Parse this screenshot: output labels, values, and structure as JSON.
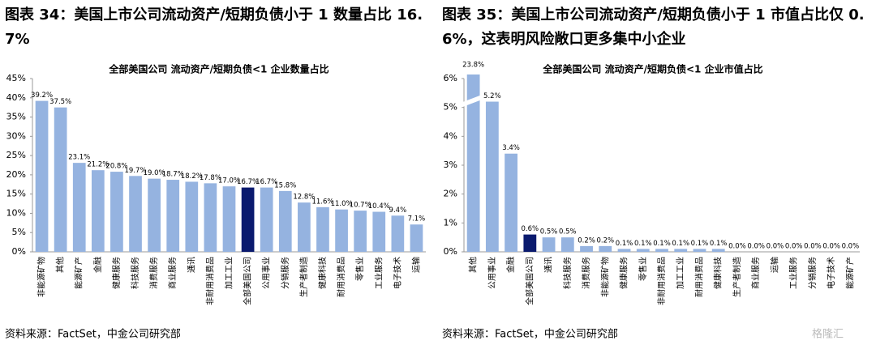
{
  "chart_data": [
    {
      "type": "bar",
      "heading": "图表 34：美国上市公司流动资产/短期负债小于 1 数量占比 16.7%",
      "title": "全部美国公司 流动资产/短期负债<1 企业数量占比",
      "categories": [
        "非能源矿物",
        "其他",
        "能源矿产",
        "金融",
        "健康服务",
        "科技服务",
        "消费服务",
        "商业服务",
        "通讯",
        "非耐用消费品",
        "加工工业",
        "全部美国公司",
        "公用事业",
        "分销服务",
        "生产者制造",
        "健康科技",
        "耐用消费品",
        "零售业",
        "工业服务",
        "电子技术",
        "运输"
      ],
      "values": [
        39.2,
        37.5,
        23.1,
        21.2,
        20.8,
        19.7,
        19.0,
        18.7,
        18.2,
        17.8,
        17.0,
        16.7,
        16.7,
        15.8,
        12.8,
        11.6,
        11.0,
        10.7,
        10.4,
        9.4,
        7.1
      ],
      "value_labels": [
        "39.2%",
        "37.5%",
        "23.1%",
        "21.2%",
        "20.8%",
        "19.7%",
        "19.0%",
        "18.7%",
        "18.2%",
        "17.8%",
        "17.0%",
        "16.7%",
        "16.7%",
        "15.8%",
        "12.8%",
        "11.6%",
        "11.0%",
        "10.7%",
        "10.4%",
        "9.4%",
        "7.1%"
      ],
      "colors": [
        "#95b3e0",
        "#95b3e0",
        "#95b3e0",
        "#95b3e0",
        "#95b3e0",
        "#95b3e0",
        "#95b3e0",
        "#95b3e0",
        "#95b3e0",
        "#95b3e0",
        "#95b3e0",
        "#0a1a6e",
        "#95b3e0",
        "#95b3e0",
        "#95b3e0",
        "#95b3e0",
        "#95b3e0",
        "#95b3e0",
        "#95b3e0",
        "#95b3e0",
        "#95b3e0"
      ],
      "ylim": [
        0,
        45
      ],
      "yticks": [
        {
          "value": 0,
          "label": "0%"
        },
        {
          "value": 5,
          "label": "5%"
        },
        {
          "value": 10,
          "label": "10%"
        },
        {
          "value": 15,
          "label": "15%"
        },
        {
          "value": 20,
          "label": "20%"
        },
        {
          "value": 25,
          "label": "25%"
        },
        {
          "value": 30,
          "label": "30%"
        },
        {
          "value": 35,
          "label": "35%"
        },
        {
          "value": 40,
          "label": "40%"
        },
        {
          "value": 45,
          "label": "45%"
        }
      ],
      "source": "资料来源：FactSet，中金公司研究部"
    },
    {
      "type": "bar",
      "heading": "图表 35：美国上市公司流动资产/短期负债小于 1 市值占比仅 0.6%，这表明风险敞口更多集中小企业",
      "title": "全部美国公司 流动资产/短期负债<1 企业市值占比",
      "categories": [
        "其他",
        "公用事业",
        "金融",
        "全部美国公司",
        "通讯",
        "科技服务",
        "消费服务",
        "非能源矿物",
        "健康服务",
        "零售业",
        "非耐用消费品",
        "加工工业",
        "耐用消费品",
        "健康科技",
        "生产者制造",
        "商业服务",
        "运输",
        "工业服务",
        "分销服务",
        "电子技术",
        "能源矿产"
      ],
      "values": [
        23.8,
        5.2,
        3.4,
        0.6,
        0.5,
        0.5,
        0.2,
        0.2,
        0.1,
        0.1,
        0.1,
        0.1,
        0.1,
        0.1,
        0.0,
        0.0,
        0.0,
        0.0,
        0.0,
        0.0,
        0.0
      ],
      "value_labels": [
        "23.8%",
        "5.2%",
        "3.4%",
        "0.6%",
        "0.5%",
        "0.5%",
        "0.2%",
        "0.2%",
        "0.1%",
        "0.1%",
        "0.1%",
        "0.1%",
        "0.1%",
        "0.1%",
        "0.0%",
        "0.0%",
        "0.0%",
        "0.0%",
        "0.0%",
        "0.0%",
        "0.0%"
      ],
      "colors": [
        "#95b3e0",
        "#95b3e0",
        "#95b3e0",
        "#0a1a6e",
        "#95b3e0",
        "#95b3e0",
        "#95b3e0",
        "#95b3e0",
        "#95b3e0",
        "#95b3e0",
        "#95b3e0",
        "#95b3e0",
        "#95b3e0",
        "#95b3e0",
        "#95b3e0",
        "#95b3e0",
        "#95b3e0",
        "#95b3e0",
        "#95b3e0",
        "#95b3e0",
        "#95b3e0"
      ],
      "ylim": [
        0,
        6
      ],
      "yticks": [
        {
          "value": 0,
          "label": "0%"
        },
        {
          "value": 1,
          "label": "1%"
        },
        {
          "value": 2,
          "label": "2%"
        },
        {
          "value": 3,
          "label": "3%"
        },
        {
          "value": 4,
          "label": "4%"
        },
        {
          "value": 5,
          "label": "5%"
        },
        {
          "value": 6,
          "label": "6%"
        }
      ],
      "source": "资料来源：FactSet，中金公司研究部"
    }
  ],
  "watermark": "格隆汇"
}
